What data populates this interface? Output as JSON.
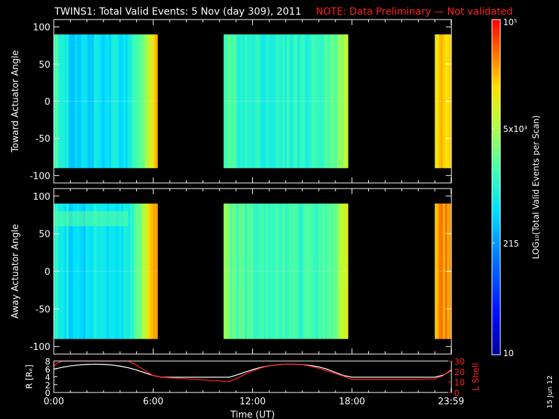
{
  "header": {
    "title": "TWINS1: Total Valid Events:  5 Nov (day 309), 2011",
    "note": "NOTE: Data Preliminary — Not validated"
  },
  "footer": {
    "date_stamp": "15 Jun 12"
  },
  "colors": {
    "background": "#000000",
    "axis": "#ffffff",
    "note": "#ff2020",
    "r_line": "#ffffff",
    "lshell_line": "#ff2020"
  },
  "chart_data": [
    {
      "type": "heatmap",
      "panel": "toward",
      "title": "",
      "xlabel": "",
      "ylabel": "Toward Actuator Angle",
      "xlim_hours": [
        0,
        24
      ],
      "ylim": [
        -110,
        110
      ],
      "yticks": [
        100,
        50,
        0,
        -50,
        -100
      ],
      "y_data_range": [
        -90,
        90
      ],
      "data_blocks": [
        {
          "start": "00:00",
          "end": "06:15"
        },
        {
          "start": "10:15",
          "end": "17:45"
        },
        {
          "start": "23:00",
          "end": "23:59"
        }
      ],
      "color_profile_log10": [
        [
          0.0,
          3.2
        ],
        [
          0.5,
          2.95
        ],
        [
          1.0,
          2.7
        ],
        [
          1.5,
          2.75
        ],
        [
          2.0,
          2.65
        ],
        [
          2.5,
          2.8
        ],
        [
          3.0,
          2.7
        ],
        [
          3.5,
          2.85
        ],
        [
          4.0,
          2.75
        ],
        [
          4.5,
          2.9
        ],
        [
          5.0,
          3.1
        ],
        [
          5.5,
          3.5
        ],
        [
          6.0,
          4.2
        ],
        [
          10.25,
          3.3
        ],
        [
          11.0,
          3.1
        ],
        [
          12.0,
          3.0
        ],
        [
          13.0,
          2.95
        ],
        [
          14.0,
          3.05
        ],
        [
          15.0,
          3.0
        ],
        [
          16.0,
          3.15
        ],
        [
          17.0,
          3.4
        ],
        [
          17.75,
          3.8
        ],
        [
          23.0,
          4.2
        ],
        [
          23.99,
          4.3
        ]
      ]
    },
    {
      "type": "heatmap",
      "panel": "away",
      "title": "",
      "xlabel": "",
      "ylabel": "Away Actuator Angle",
      "xlim_hours": [
        0,
        24
      ],
      "ylim": [
        -110,
        110
      ],
      "yticks": [
        100,
        50,
        0,
        -50,
        -100
      ],
      "y_data_range": [
        -90,
        90
      ],
      "data_blocks": [
        {
          "start": "00:00",
          "end": "06:15"
        },
        {
          "start": "10:15",
          "end": "17:45"
        },
        {
          "start": "23:00",
          "end": "23:59"
        }
      ],
      "color_profile_log10": [
        [
          0.0,
          3.0
        ],
        [
          0.5,
          2.9
        ],
        [
          1.0,
          2.75
        ],
        [
          1.5,
          2.8
        ],
        [
          2.0,
          2.7
        ],
        [
          2.5,
          2.85
        ],
        [
          3.0,
          2.75
        ],
        [
          3.5,
          2.9
        ],
        [
          4.0,
          2.8
        ],
        [
          4.5,
          2.95
        ],
        [
          5.0,
          3.3
        ],
        [
          5.5,
          3.8
        ],
        [
          6.0,
          4.3
        ],
        [
          10.25,
          3.5
        ],
        [
          11.0,
          3.3
        ],
        [
          12.0,
          3.15
        ],
        [
          13.0,
          3.1
        ],
        [
          14.0,
          3.15
        ],
        [
          15.0,
          3.1
        ],
        [
          16.0,
          3.2
        ],
        [
          17.0,
          3.5
        ],
        [
          17.75,
          4.0
        ],
        [
          23.0,
          4.4
        ],
        [
          23.99,
          4.5
        ]
      ],
      "feature": {
        "y_range": [
          60,
          80
        ],
        "hours": [
          0.0,
          4.5
        ],
        "log10": 3.3
      }
    },
    {
      "type": "line",
      "panel": "orbit",
      "title": "",
      "xlabel": "Time (UT)",
      "ylabel": "R [Rₑ]",
      "ylabel_right": "L Shell",
      "xlim_hours": [
        0,
        24
      ],
      "ylim": [
        0,
        8
      ],
      "yticks": [
        0,
        2,
        4,
        6,
        8
      ],
      "ylim_right": [
        0,
        30
      ],
      "yticks_right": [
        0,
        10,
        20,
        30
      ],
      "x_tick_labels": [
        "0:00",
        "6:00",
        "12:00",
        "18:00",
        "23:59"
      ],
      "x_tick_hours": [
        0,
        6,
        12,
        18,
        23.98
      ],
      "series": [
        {
          "name": "R [Rₑ]",
          "axis": "left",
          "x": [
            0,
            0.5,
            1,
            1.5,
            2,
            2.5,
            3,
            3.5,
            4,
            4.5,
            5,
            5.5,
            6,
            6.5,
            7,
            8,
            9,
            10,
            10.6,
            11,
            11.5,
            12,
            12.5,
            13,
            13.5,
            14,
            14.5,
            15,
            15.5,
            16,
            16.5,
            17,
            17.5,
            18,
            18.5,
            19,
            20,
            21,
            22,
            23,
            23.5,
            23.99
          ],
          "y": [
            5.9,
            6.4,
            6.75,
            7.0,
            7.15,
            7.2,
            7.15,
            7.0,
            6.7,
            6.3,
            5.7,
            5.0,
            4.3,
            3.9,
            3.9,
            3.9,
            3.9,
            3.9,
            3.9,
            4.4,
            5.1,
            5.8,
            6.4,
            6.8,
            7.05,
            7.2,
            7.2,
            7.1,
            6.85,
            6.5,
            5.9,
            5.1,
            4.3,
            3.9,
            3.9,
            3.9,
            3.9,
            3.9,
            3.9,
            3.9,
            4.4,
            5.6
          ]
        },
        {
          "name": "L Shell",
          "axis": "right",
          "x": [
            0,
            0.2,
            0.5,
            1.2,
            2,
            3,
            4,
            4.5,
            5,
            5.5,
            6,
            6.5,
            7,
            8,
            9,
            10,
            10.6,
            11,
            11.5,
            12,
            12.5,
            13,
            13.5,
            14,
            14.5,
            15,
            15.5,
            16,
            16.5,
            17,
            17.5,
            18,
            18.5,
            19,
            20,
            21,
            22,
            23,
            23.5,
            23.99
          ],
          "y": [
            25,
            28,
            30,
            30,
            30,
            30,
            30,
            30,
            26,
            21,
            16,
            14.5,
            14,
            13,
            12,
            11,
            10.5,
            13,
            17,
            20.5,
            23.5,
            25.5,
            26.5,
            27,
            27,
            26.5,
            25,
            23,
            20.5,
            18,
            15.5,
            12.5,
            12.5,
            12.5,
            12.5,
            12.5,
            12.5,
            13,
            16,
            22
          ]
        }
      ]
    },
    {
      "type": "colorbar",
      "label": "LOG₁₀(Total Valid Events per Scan)",
      "scale": "log",
      "range": [
        10,
        100000
      ],
      "tick_labels": [
        {
          "value": 10,
          "text": "10"
        },
        {
          "value": 215,
          "text": "215"
        },
        {
          "value": 5000,
          "text": "5x10³"
        },
        {
          "value": 100000,
          "text": "10⁵"
        }
      ]
    }
  ]
}
